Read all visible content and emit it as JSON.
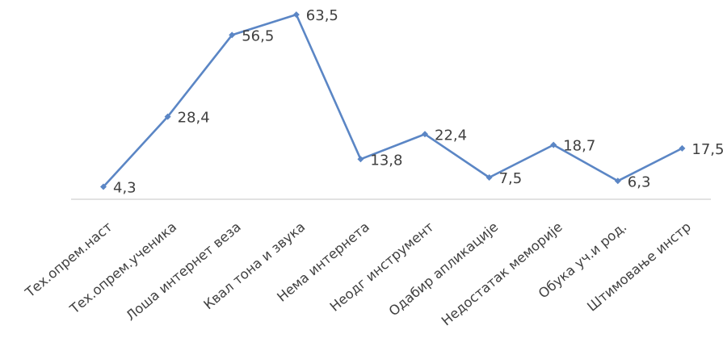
{
  "chart_data": {
    "type": "line",
    "title": "",
    "xlabel": "",
    "ylabel": "",
    "categories": [
      "Тех.опрем.наст",
      "Тех.опрем.ученика",
      "Лоша интернет веза",
      "Квал тона и звука",
      "Нема интернета",
      "Неодг инструмент",
      "Одабир апликације",
      "Недостатак меморије",
      "Обука уч.и род.",
      "Штимовање инстр"
    ],
    "series": [
      {
        "values": [
          4.3,
          28.4,
          56.5,
          63.5,
          13.8,
          22.4,
          7.5,
          18.7,
          6.3,
          17.5
        ],
        "labels": [
          "4,3",
          "28,4",
          "56,5",
          "63,5",
          "13,8",
          "22,4",
          "7,5",
          "18,7",
          "6,3",
          "17,5"
        ]
      }
    ],
    "ylim": [
      0,
      70
    ],
    "grid": false,
    "legend": "none",
    "colors": {
      "line": "#5B86C5",
      "axis": "#D9D9D9",
      "text": "#404040"
    }
  }
}
